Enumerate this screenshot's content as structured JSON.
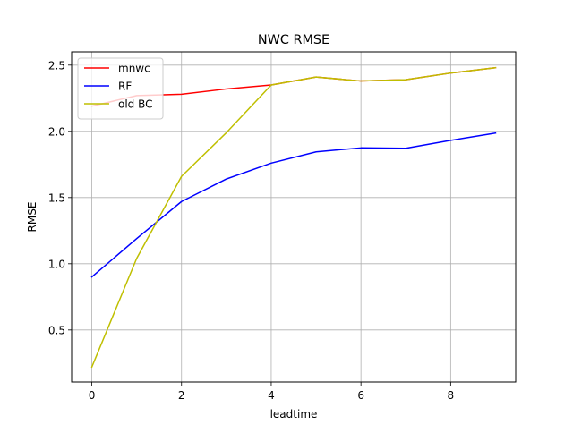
{
  "chart_data": {
    "type": "line",
    "title": "NWC RMSE",
    "xlabel": "leadtime",
    "ylabel": "RMSE",
    "x": [
      0,
      1,
      2,
      3,
      4,
      5,
      6,
      7,
      8,
      9
    ],
    "xlim": [
      -0.45,
      9.45
    ],
    "ylim": [
      0.107,
      2.6
    ],
    "xticks": [
      0,
      2,
      4,
      6,
      8
    ],
    "xtick_labels": [
      "0",
      "2",
      "4",
      "6",
      "8"
    ],
    "yticks": [
      0.5,
      1.0,
      1.5,
      2.0,
      2.5
    ],
    "ytick_labels": [
      "0.5",
      "1.0",
      "1.5",
      "2.0",
      "2.5"
    ],
    "grid": true,
    "legend_position": "upper-left",
    "series": [
      {
        "name": "mnwc",
        "color": "#ff0000",
        "values": [
          2.19,
          2.27,
          2.28,
          2.32,
          2.35,
          2.41,
          2.38,
          2.39,
          2.44,
          2.48
        ]
      },
      {
        "name": "RF",
        "color": "#0000ff",
        "values": [
          0.9,
          1.19,
          1.47,
          1.64,
          1.76,
          1.845,
          1.875,
          1.872,
          1.932,
          1.987
        ]
      },
      {
        "name": "old BC",
        "color": "#bfbf00",
        "values": [
          0.22,
          1.04,
          1.66,
          1.99,
          2.35,
          2.41,
          2.38,
          2.39,
          2.44,
          2.48
        ]
      }
    ]
  }
}
